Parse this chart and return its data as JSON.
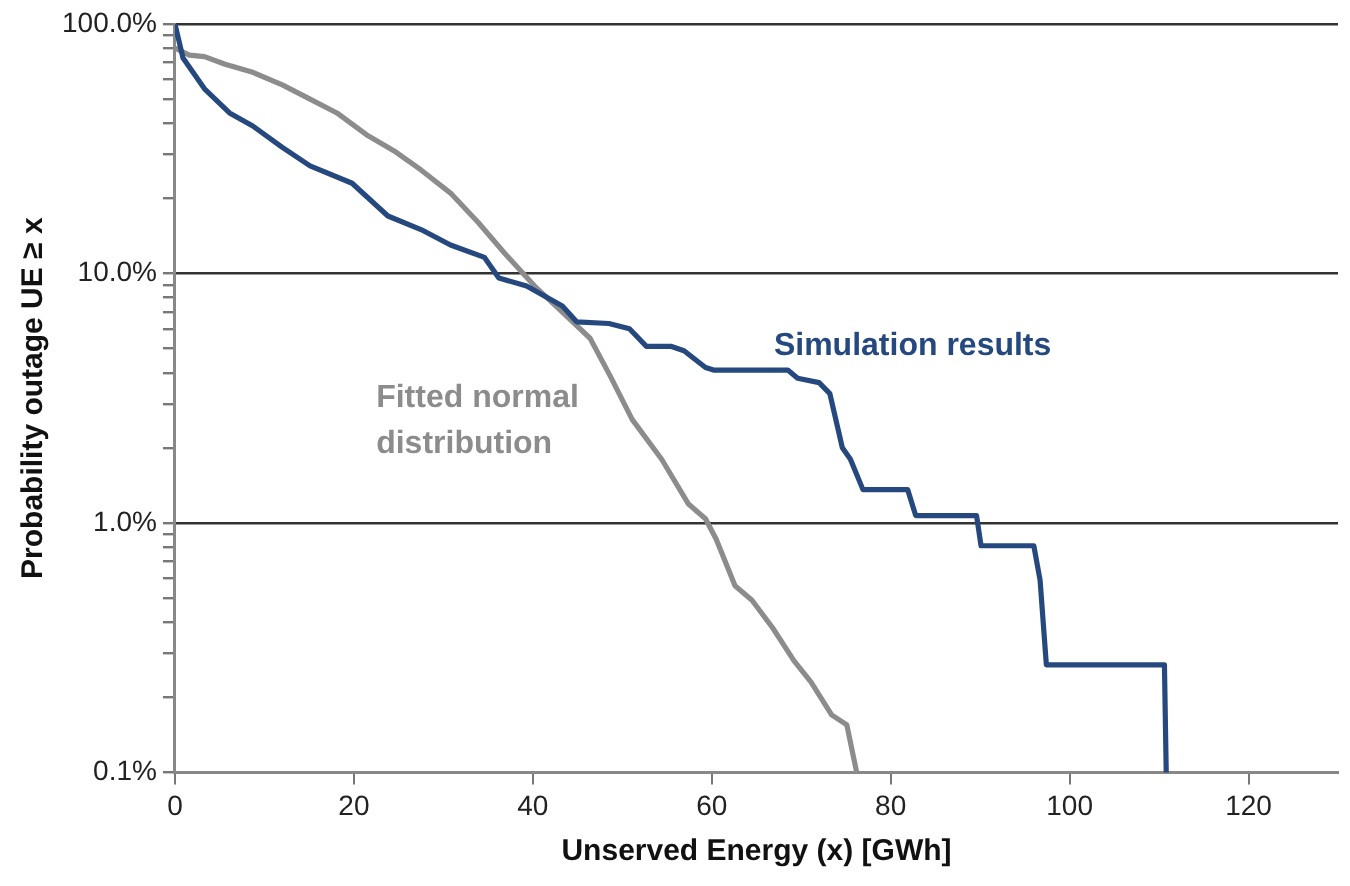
{
  "chart_data": {
    "type": "line",
    "xlabel": "Unserved Energy (x) [GWh]",
    "ylabel": "Probability outage UE ≥ x",
    "log": "y",
    "grid": "y",
    "legend": false,
    "marker": "none",
    "line_style": "solid",
    "xlim": [
      0,
      130
    ],
    "xticks": [
      0,
      20,
      40,
      60,
      80,
      100,
      120
    ],
    "ylim": [
      0.1,
      100
    ],
    "yticks": [
      {
        "value": 0.1,
        "label": "0.1%"
      },
      {
        "value": 0.2,
        "label": null
      },
      {
        "value": 0.3,
        "label": null
      },
      {
        "value": 0.4,
        "label": null
      },
      {
        "value": 0.5,
        "label": null
      },
      {
        "value": 0.6,
        "label": null
      },
      {
        "value": 0.7,
        "label": null
      },
      {
        "value": 0.8,
        "label": null
      },
      {
        "value": 0.9,
        "label": null
      },
      {
        "value": 1,
        "label": "1.0%"
      },
      {
        "value": 2,
        "label": null
      },
      {
        "value": 3,
        "label": null
      },
      {
        "value": 4,
        "label": null
      },
      {
        "value": 5,
        "label": null
      },
      {
        "value": 6,
        "label": null
      },
      {
        "value": 7,
        "label": null
      },
      {
        "value": 8,
        "label": null
      },
      {
        "value": 9,
        "label": null
      },
      {
        "value": 10,
        "label": "10.0%"
      },
      {
        "value": 20,
        "label": null
      },
      {
        "value": 30,
        "label": null
      },
      {
        "value": 40,
        "label": null
      },
      {
        "value": 50,
        "label": null
      },
      {
        "value": 60,
        "label": null
      },
      {
        "value": 70,
        "label": null
      },
      {
        "value": 80,
        "label": null
      },
      {
        "value": 90,
        "label": null
      },
      {
        "value": 100,
        "label": "100.0%"
      }
    ],
    "series": [
      {
        "name": "Simulation results",
        "color": "#25497f",
        "x": [
          0,
          0.9,
          3.3,
          6.1,
          8.7,
          12,
          15.1,
          19.8,
          23.8,
          27.5,
          30.8,
          34.6,
          36.2,
          39.3,
          43.3,
          44.9,
          48.5,
          50.8,
          52.7,
          55.5,
          56.9,
          59.3,
          60.2,
          68.5,
          69.6,
          72,
          73.2,
          74.6,
          75.5,
          76.9,
          81.9,
          82.8,
          89.6,
          90.1,
          96,
          96.7,
          97.4,
          110.6,
          110.8
        ],
        "values": [
          100,
          73,
          55,
          44,
          39,
          32,
          27,
          23,
          17,
          15,
          13,
          11.6,
          9.6,
          8.9,
          7.4,
          6.4,
          6.3,
          6,
          5.1,
          5.1,
          4.9,
          4.2,
          4.1,
          4.1,
          3.8,
          3.65,
          3.3,
          2,
          1.8,
          1.36,
          1.36,
          1.07,
          1.07,
          0.81,
          0.81,
          0.59,
          0.27,
          0.27,
          0.1
        ]
      },
      {
        "name": "Fitted normal distribution",
        "color": "#8c8c8c",
        "x": [
          0,
          1.6,
          3.3,
          5.6,
          8.7,
          12,
          15.1,
          18.1,
          21.4,
          24.5,
          27.5,
          30.8,
          33.9,
          36.9,
          40.2,
          43.3,
          46.4,
          48.7,
          51.1,
          54.4,
          57.4,
          59.3,
          60.5,
          62.6,
          64.5,
          66.8,
          69.2,
          71.1,
          73.4,
          75.1,
          76.2
        ],
        "values": [
          80,
          75,
          74,
          69,
          64,
          57,
          50,
          44,
          36,
          31,
          26,
          21,
          16,
          12,
          8.9,
          7,
          5.5,
          3.85,
          2.6,
          1.8,
          1.19,
          1.04,
          0.86,
          0.56,
          0.49,
          0.38,
          0.28,
          0.23,
          0.17,
          0.155,
          0.1
        ]
      }
    ]
  }
}
